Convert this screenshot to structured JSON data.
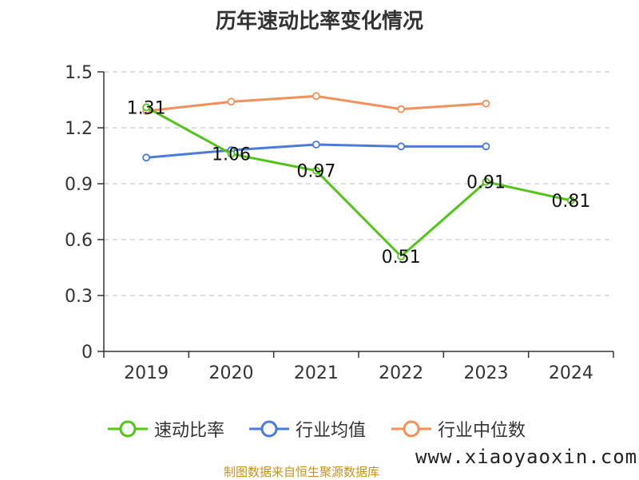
{
  "chart_data": {
    "type": "line",
    "title": "历年速动比率变化情况",
    "categories": [
      "2019",
      "2020",
      "2021",
      "2022",
      "2023",
      "2024"
    ],
    "y_ticks": [
      "0",
      "0.3",
      "0.6",
      "0.9",
      "1.2",
      "1.5"
    ],
    "ylim": [
      0,
      1.5
    ],
    "grid": true,
    "legend_position": "bottom",
    "series": [
      {
        "name": "速动比率",
        "color": "#52c41a",
        "values": [
          1.31,
          1.06,
          0.97,
          0.51,
          0.91,
          0.81
        ],
        "labels": [
          "1.31",
          "1.06",
          "0.97",
          "0.51",
          "0.91",
          "0.81"
        ]
      },
      {
        "name": "行业均值",
        "color": "#4a7bd8",
        "values": [
          1.04,
          1.08,
          1.11,
          1.1,
          1.1,
          null
        ]
      },
      {
        "name": "行业中位数",
        "color": "#f4905a",
        "values": [
          1.29,
          1.34,
          1.37,
          1.3,
          1.33,
          null
        ]
      }
    ]
  },
  "source": "制图数据来自恒生聚源数据库",
  "watermark": "www.xiaoyaoxin.com"
}
